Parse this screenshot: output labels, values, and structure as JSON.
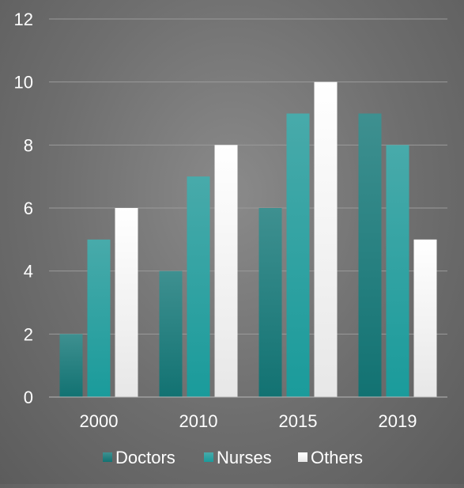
{
  "chart_data": {
    "type": "bar",
    "categories": [
      "2000",
      "2010",
      "2015",
      "2019"
    ],
    "series": [
      {
        "name": "Doctors",
        "values": [
          2,
          4,
          6,
          9
        ],
        "color": "#1e7b7b"
      },
      {
        "name": "Nurses",
        "values": [
          5,
          7,
          9,
          8
        ],
        "color": "#2aa3a3"
      },
      {
        "name": "Others",
        "values": [
          6,
          8,
          10,
          5
        ],
        "color": "#ffffff"
      }
    ],
    "ylim": [
      0,
      12
    ],
    "yticks": [
      0,
      2,
      4,
      6,
      8,
      10,
      12
    ],
    "grid": true,
    "legend": "bottom",
    "title": "",
    "xlabel": "",
    "ylabel": ""
  }
}
